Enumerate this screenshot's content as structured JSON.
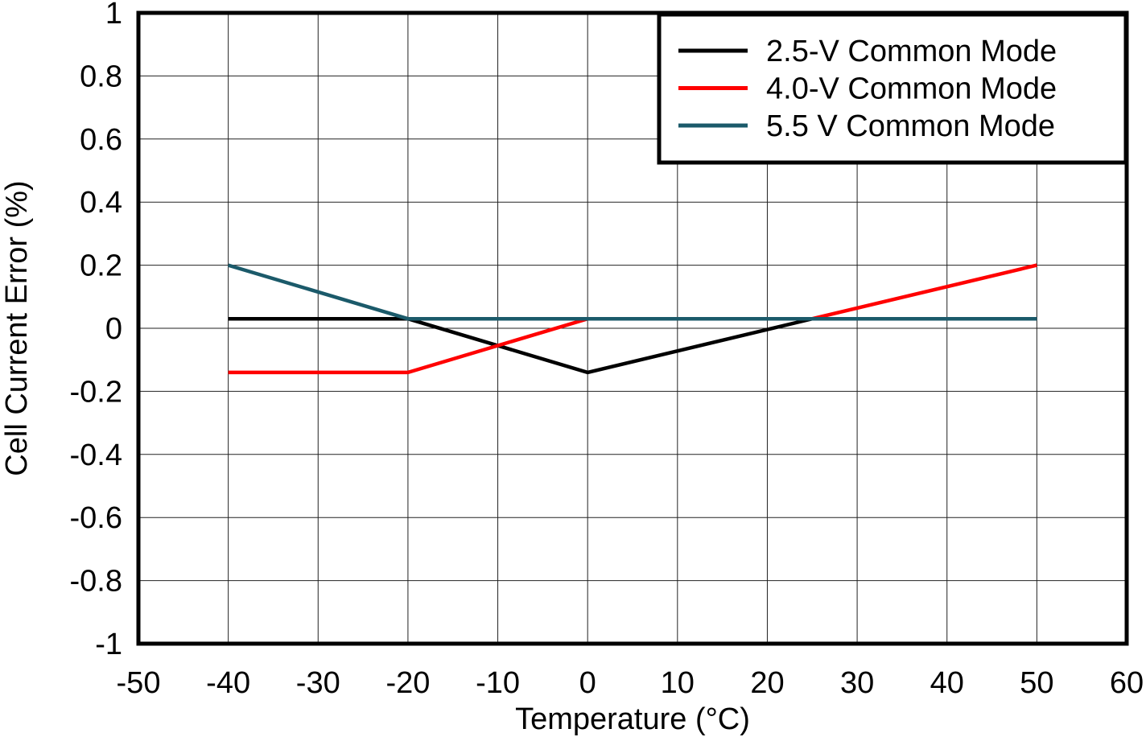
{
  "chart_data": {
    "type": "line",
    "title": "",
    "xlabel": "Temperature (°C)",
    "ylabel": "Cell Current Error (%)",
    "xlim": [
      -50,
      60
    ],
    "ylim": [
      -1,
      1
    ],
    "x_ticks": [
      -50,
      -40,
      -30,
      -20,
      -10,
      0,
      10,
      20,
      30,
      40,
      50,
      60
    ],
    "y_ticks": [
      1,
      0.8,
      0.6,
      0.4,
      0.2,
      0,
      -0.2,
      -0.4,
      -0.6,
      -0.8,
      -1
    ],
    "x_tick_labels": [
      "-50",
      "-40",
      "-30",
      "-20",
      "-10",
      "0",
      "10",
      "20",
      "30",
      "40",
      "50",
      "60"
    ],
    "y_tick_labels": [
      "1",
      "0.8",
      "0.6",
      "0.4",
      "0.2",
      "0",
      "-0.2",
      "-0.4",
      "-0.6",
      "-0.8",
      "-1"
    ],
    "grid": true,
    "legend_position": "top-right",
    "series": [
      {
        "name": "2.5-V Common Mode",
        "color": "#000000",
        "x": [
          -40,
          -20,
          0,
          25,
          50
        ],
        "y": [
          0.03,
          0.03,
          -0.14,
          0.03,
          0.03
        ]
      },
      {
        "name": "4.0-V Common Mode",
        "color": "#ff0000",
        "x": [
          -40,
          -20,
          0,
          25,
          50
        ],
        "y": [
          -0.14,
          -0.14,
          0.03,
          0.03,
          0.2
        ]
      },
      {
        "name": "5.5 V Common Mode",
        "color": "#1b5a6a",
        "x": [
          -40,
          -20,
          0,
          25,
          50
        ],
        "y": [
          0.2,
          0.03,
          0.03,
          0.03,
          0.03
        ]
      }
    ]
  }
}
